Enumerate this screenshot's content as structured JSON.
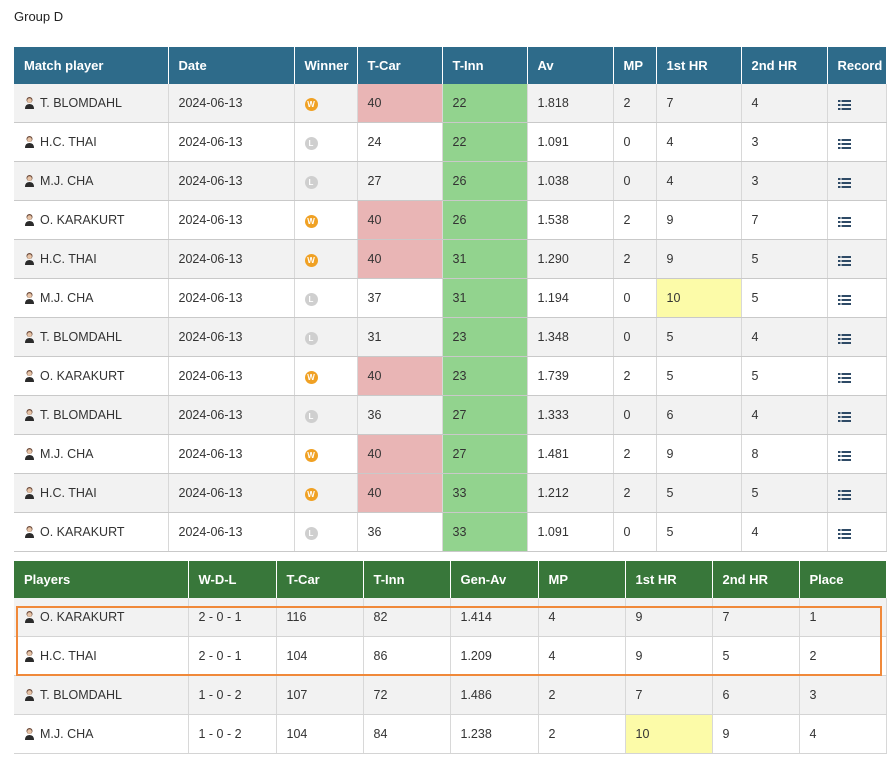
{
  "group_title": "Group D",
  "colors": {
    "matches_header": "#2e6b8a",
    "standings_header": "#38773a",
    "winner": "#f0a124",
    "loser": "#cfcfcf",
    "tcar_win": "#e9b5b5",
    "tinn": "#92d38e",
    "highlight": "#fcfba8",
    "qualify_border": "#f0893a"
  },
  "matches": {
    "headers": [
      "Match player",
      "Date",
      "Winner",
      "T-Car",
      "T-Inn",
      "Av",
      "MP",
      "1st HR",
      "2nd HR",
      "Record"
    ],
    "rows": [
      {
        "player": "T. BLOMDAHL",
        "date": "2024-06-13",
        "winner": "W",
        "tcar": "40",
        "tinn": "22",
        "av": "1.818",
        "mp": "2",
        "hr1": "7",
        "hr2": "4"
      },
      {
        "player": "H.C. THAI",
        "date": "2024-06-13",
        "winner": "L",
        "tcar": "24",
        "tinn": "22",
        "av": "1.091",
        "mp": "0",
        "hr1": "4",
        "hr2": "3"
      },
      {
        "player": "M.J. CHA",
        "date": "2024-06-13",
        "winner": "L",
        "tcar": "27",
        "tinn": "26",
        "av": "1.038",
        "mp": "0",
        "hr1": "4",
        "hr2": "3"
      },
      {
        "player": "O. KARAKURT",
        "date": "2024-06-13",
        "winner": "W",
        "tcar": "40",
        "tinn": "26",
        "av": "1.538",
        "mp": "2",
        "hr1": "9",
        "hr2": "7"
      },
      {
        "player": "H.C. THAI",
        "date": "2024-06-13",
        "winner": "W",
        "tcar": "40",
        "tinn": "31",
        "av": "1.290",
        "mp": "2",
        "hr1": "9",
        "hr2": "5"
      },
      {
        "player": "M.J. CHA",
        "date": "2024-06-13",
        "winner": "L",
        "tcar": "37",
        "tinn": "31",
        "av": "1.194",
        "mp": "0",
        "hr1": "10",
        "hr2": "5"
      },
      {
        "player": "T. BLOMDAHL",
        "date": "2024-06-13",
        "winner": "L",
        "tcar": "31",
        "tinn": "23",
        "av": "1.348",
        "mp": "0",
        "hr1": "5",
        "hr2": "4"
      },
      {
        "player": "O. KARAKURT",
        "date": "2024-06-13",
        "winner": "W",
        "tcar": "40",
        "tinn": "23",
        "av": "1.739",
        "mp": "2",
        "hr1": "5",
        "hr2": "5"
      },
      {
        "player": "T. BLOMDAHL",
        "date": "2024-06-13",
        "winner": "L",
        "tcar": "36",
        "tinn": "27",
        "av": "1.333",
        "mp": "0",
        "hr1": "6",
        "hr2": "4"
      },
      {
        "player": "M.J. CHA",
        "date": "2024-06-13",
        "winner": "W",
        "tcar": "40",
        "tinn": "27",
        "av": "1.481",
        "mp": "2",
        "hr1": "9",
        "hr2": "8"
      },
      {
        "player": "H.C. THAI",
        "date": "2024-06-13",
        "winner": "W",
        "tcar": "40",
        "tinn": "33",
        "av": "1.212",
        "mp": "2",
        "hr1": "5",
        "hr2": "5"
      },
      {
        "player": "O. KARAKURT",
        "date": "2024-06-13",
        "winner": "L",
        "tcar": "36",
        "tinn": "33",
        "av": "1.091",
        "mp": "0",
        "hr1": "5",
        "hr2": "4"
      }
    ]
  },
  "standings": {
    "headers": [
      "Players",
      "W-D-L",
      "T-Car",
      "T-Inn",
      "Gen-Av",
      "MP",
      "1st HR",
      "2nd HR",
      "Place"
    ],
    "rows": [
      {
        "player": "O. KARAKURT",
        "wdl": "2 - 0 - 1",
        "tcar": "116",
        "tinn": "82",
        "genav": "1.414",
        "mp": "4",
        "hr1": "9",
        "hr2": "7",
        "place": "1"
      },
      {
        "player": "H.C. THAI",
        "wdl": "2 - 0 - 1",
        "tcar": "104",
        "tinn": "86",
        "genav": "1.209",
        "mp": "4",
        "hr1": "9",
        "hr2": "5",
        "place": "2"
      },
      {
        "player": "T. BLOMDAHL",
        "wdl": "1 - 0 - 2",
        "tcar": "107",
        "tinn": "72",
        "genav": "1.486",
        "mp": "2",
        "hr1": "7",
        "hr2": "6",
        "place": "3"
      },
      {
        "player": "M.J. CHA",
        "wdl": "1 - 0 - 2",
        "tcar": "104",
        "tinn": "84",
        "genav": "1.238",
        "mp": "2",
        "hr1": "10",
        "hr2": "9",
        "place": "4"
      }
    ]
  },
  "icons": {
    "record": "list-icon",
    "avatar": "player-avatar-icon",
    "winner": "winner-badge-icon",
    "loser": "loser-badge-icon"
  }
}
